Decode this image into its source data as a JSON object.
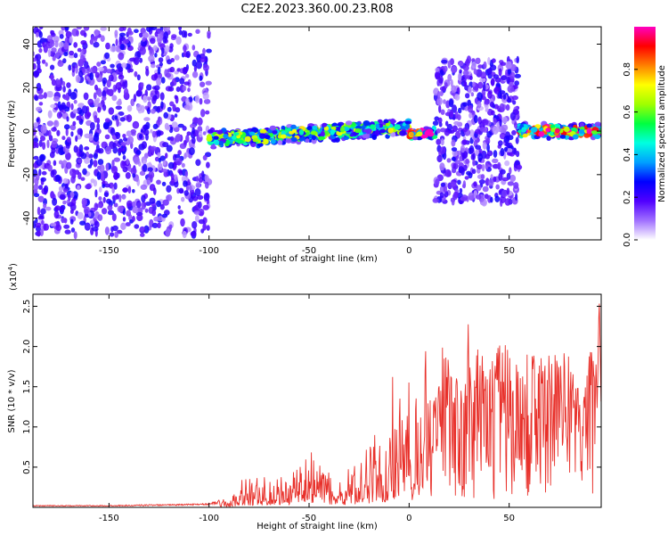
{
  "title": "C2E2.2023.360.00.23.R08",
  "chart_data": [
    {
      "type": "heatmap",
      "xlabel": "Height of straight line (km)",
      "ylabel": "Frequency (Hz)",
      "xlim": [
        -188,
        96
      ],
      "ylim": [
        -50,
        48
      ],
      "xticks": [
        -150,
        -100,
        -50,
        0,
        50
      ],
      "yticks": [
        -40,
        -20,
        0,
        20,
        40
      ],
      "colorbar": {
        "label": "Normalized spectral amplitude",
        "range": [
          0.0,
          1.0
        ],
        "ticks": [
          "0.0",
          "0.2",
          "0.4",
          "0.6",
          "0.8"
        ],
        "colormap": [
          "#ffffff",
          "#a070ff",
          "#5000ff",
          "#0000ff",
          "#00a0ff",
          "#00ffe0",
          "#00ff40",
          "#a0ff00",
          "#ffff00",
          "#ff8000",
          "#ff0000",
          "#ff00c0"
        ]
      },
      "regions": [
        {
          "x": [
            -188,
            -100
          ],
          "center_hz": 0,
          "spread_hz": 48,
          "amplitude": 0.25,
          "pattern": "scattered noise"
        },
        {
          "x": [
            -100,
            0
          ],
          "center_hz": -2,
          "spread_hz": 5,
          "amplitude": 0.6,
          "pattern": "narrow band drifting from -4 Hz to 2 Hz"
        },
        {
          "x": [
            0,
            13
          ],
          "center_hz": -1,
          "spread_hz": 3,
          "amplitude": 0.95,
          "pattern": "narrow band"
        },
        {
          "x": [
            13,
            55
          ],
          "center_hz": 0,
          "spread_hz": 33,
          "amplitude": 0.3,
          "pattern": "broad scattered"
        },
        {
          "x": [
            55,
            96
          ],
          "center_hz": 0,
          "spread_hz": 4,
          "amplitude": 0.85,
          "pattern": "narrow band"
        }
      ]
    },
    {
      "type": "line",
      "xlabel": "Height of straight line (km)",
      "ylabel": "SNR (10 * v/v)",
      "y_multiplier": "(x10^4)",
      "y_multiplier_base": "(x10",
      "y_multiplier_exp": "4",
      "y_multiplier_close": ")",
      "xlim": [
        -188,
        96
      ],
      "ylim": [
        0,
        2.65
      ],
      "xticks": [
        -150,
        -100,
        -50,
        0,
        50
      ],
      "yticks": [
        0.5,
        1.0,
        1.5,
        2.0,
        2.5
      ],
      "color": "#e8302a",
      "series": [
        {
          "x": [
            -188,
            -150,
            -120,
            -100,
            -90,
            -85,
            -80,
            -75,
            -70,
            -65,
            -60,
            -55,
            -50,
            -45,
            -40,
            -35,
            -30,
            -25,
            -20,
            -15,
            -10,
            -8,
            -5,
            -2,
            0,
            2,
            5,
            8,
            10,
            13,
            15,
            17,
            18,
            20,
            25,
            28,
            30,
            32,
            35,
            40,
            45,
            50,
            55,
            60,
            65,
            70,
            75,
            80,
            85,
            90,
            93,
            94,
            95,
            96
          ],
          "y": [
            0.02,
            0.02,
            0.03,
            0.04,
            0.1,
            0.22,
            0.3,
            0.32,
            0.35,
            0.4,
            0.45,
            0.5,
            0.55,
            0.6,
            0.35,
            0.35,
            0.4,
            0.5,
            0.6,
            0.75,
            0.8,
            1.2,
            1.3,
            1.5,
            1.2,
            1.1,
            1.3,
            1.35,
            1.6,
            1.4,
            1.7,
            2.0,
            1.9,
            1.85,
            1.65,
            1.8,
            2.3,
            2.0,
            1.9,
            1.75,
            2.0,
            1.9,
            1.85,
            1.85,
            1.9,
            1.85,
            1.9,
            1.85,
            1.85,
            1.8,
            2.1,
            1.2,
            2.65,
            1.2
          ]
        }
      ]
    }
  ]
}
